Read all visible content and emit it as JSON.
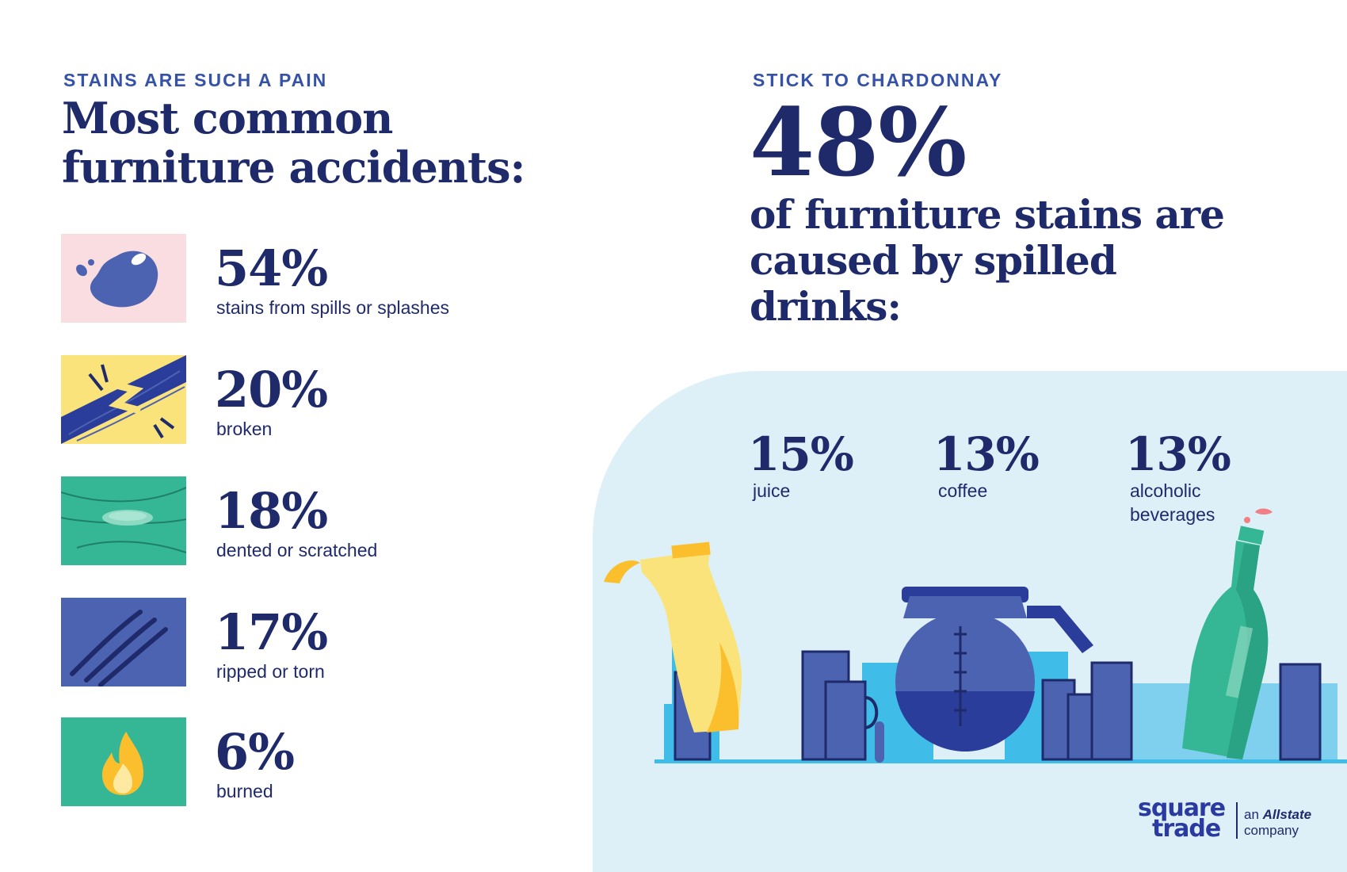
{
  "left": {
    "eyebrow": "STAINS ARE SUCH A PAIN",
    "title": "Most common furniture accidents:",
    "items": [
      {
        "percent": "54%",
        "label": "stains from spills or splashes",
        "icon": "spill-blob-icon",
        "tile_color": "#fadde1"
      },
      {
        "percent": "20%",
        "label": "broken",
        "icon": "crack-icon",
        "tile_color": "#fae37a"
      },
      {
        "percent": "18%",
        "label": "dented or scratched",
        "icon": "dent-icon",
        "tile_color": "#35b795"
      },
      {
        "percent": "17%",
        "label": "ripped or torn",
        "icon": "rip-icon",
        "tile_color": "#4c63b2"
      },
      {
        "percent": "6%",
        "label": "burned",
        "icon": "flame-icon",
        "tile_color": "#35b795"
      }
    ]
  },
  "right": {
    "eyebrow": "STICK TO CHARDONNAY",
    "big_percent": "48%",
    "subtitle": "of furniture stains are caused by spilled drinks:",
    "drinks": [
      {
        "percent": "15%",
        "label": "juice"
      },
      {
        "percent": "13%",
        "label": "coffee"
      },
      {
        "percent": "13%",
        "label": "alcoholic\nbeverages"
      }
    ]
  },
  "logo": {
    "line1": "square",
    "line2": "trade",
    "an": "an",
    "brand": "Allstate",
    "company": "company"
  },
  "colors": {
    "navy": "#1f2a6b",
    "accent_blue": "#3552a8",
    "panel": "#ddf0f8",
    "juice_yellow": "#fae37a",
    "bottle_green": "#35b795"
  }
}
